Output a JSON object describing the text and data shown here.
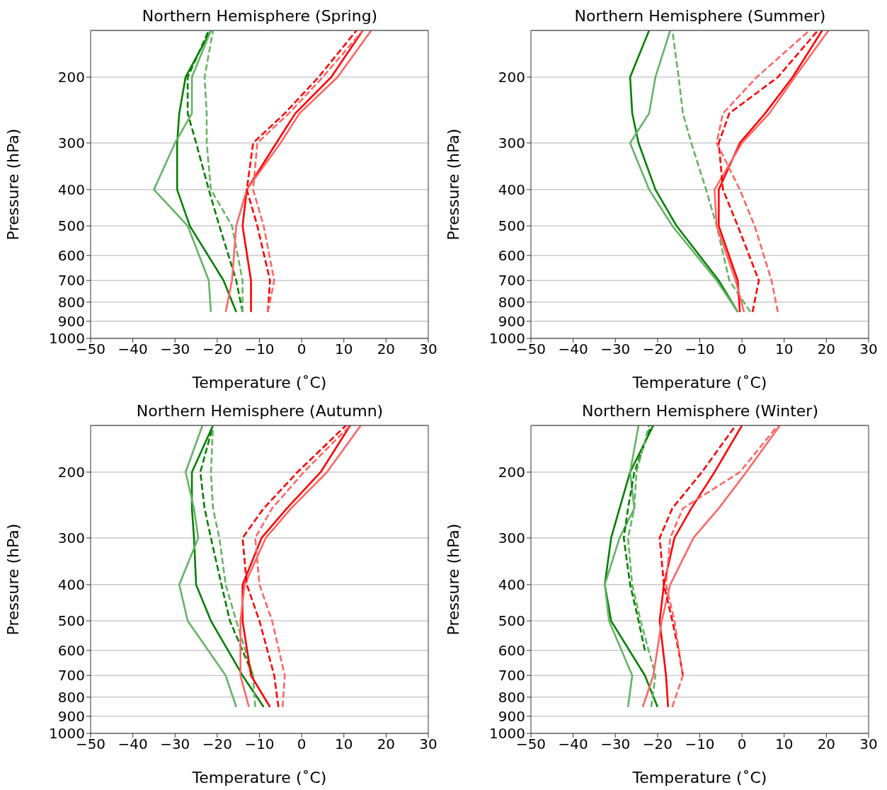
{
  "chart_data": [
    {
      "type": "line",
      "title": "Northern Hemisphere (Spring)",
      "xlabel": "Temperature (˚C)",
      "ylabel": "Pressure (hPa)",
      "xlim": [
        -50,
        30
      ],
      "xticks": [
        -50,
        -40,
        -30,
        -20,
        -10,
        0,
        10,
        20,
        30
      ],
      "ylim": [
        1000,
        150
      ],
      "yticks": [
        200,
        300,
        400,
        500,
        600,
        700,
        800,
        900,
        1000
      ],
      "log": "y",
      "grid": "y",
      "series": [
        {
          "color": "#008000",
          "line_style": "solid",
          "x": [
            -15.5,
            -18.5,
            -26.5,
            -29.5,
            -29.5,
            -29,
            -27.5,
            -21.5
          ],
          "values": [
            850,
            700,
            500,
            400,
            300,
            250,
            200,
            150
          ]
        },
        {
          "color": "#66b366",
          "line_style": "solid",
          "x": [
            -21.5,
            -22,
            -27,
            -35,
            -30,
            -26,
            -26,
            -21.5
          ],
          "values": [
            850,
            700,
            500,
            400,
            300,
            250,
            200,
            150
          ]
        },
        {
          "color": "#008000",
          "line_style": "dashed",
          "x": [
            -14,
            -15.5,
            -19.5,
            -22,
            -25,
            -27,
            -27,
            -22
          ],
          "values": [
            850,
            700,
            500,
            400,
            300,
            250,
            200,
            150
          ]
        },
        {
          "color": "#66b366",
          "line_style": "dashed",
          "x": [
            -14,
            -14,
            -16.5,
            -21.5,
            -22.5,
            -22.5,
            -23,
            -21
          ],
          "values": [
            850,
            700,
            500,
            400,
            300,
            250,
            200,
            150
          ]
        },
        {
          "color": "#ff0000",
          "line_style": "solid",
          "x": [
            -12,
            -12,
            -14,
            -13,
            -6,
            -1.5,
            7,
            14.5
          ],
          "values": [
            850,
            700,
            500,
            400,
            300,
            250,
            200,
            150
          ]
        },
        {
          "color": "#ff6666",
          "line_style": "solid",
          "x": [
            -18,
            -16.5,
            -15.5,
            -13,
            -5,
            -0.5,
            8.5,
            16.5
          ],
          "values": [
            850,
            700,
            500,
            400,
            300,
            250,
            200,
            150
          ]
        },
        {
          "color": "#ff0000",
          "line_style": "dashed",
          "x": [
            -8,
            -7.5,
            -10.5,
            -13,
            -11.5,
            -4,
            4,
            13
          ],
          "values": [
            850,
            700,
            500,
            400,
            300,
            250,
            200,
            150
          ]
        },
        {
          "color": "#ff6666",
          "line_style": "dashed",
          "x": [
            -8,
            -6.5,
            -9,
            -11.5,
            -10.5,
            -3,
            5,
            14.5
          ],
          "values": [
            850,
            700,
            500,
            400,
            300,
            250,
            200,
            150
          ]
        }
      ]
    },
    {
      "type": "line",
      "title": "Northern Hemisphere (Summer)",
      "xlabel": "Temperature (˚C)",
      "ylabel": "Pressure (hPa)",
      "xlim": [
        -50,
        30
      ],
      "xticks": [
        -50,
        -40,
        -30,
        -20,
        -10,
        0,
        10,
        20,
        30
      ],
      "ylim": [
        1000,
        150
      ],
      "yticks": [
        200,
        300,
        400,
        500,
        600,
        700,
        800,
        900,
        1000
      ],
      "log": "y",
      "grid": "y",
      "series": [
        {
          "color": "#008000",
          "line_style": "solid",
          "x": [
            -1,
            -5.5,
            -15.5,
            -20.5,
            -24.5,
            -26,
            -26.5,
            -22
          ],
          "values": [
            850,
            700,
            500,
            400,
            300,
            250,
            200,
            150
          ]
        },
        {
          "color": "#66b366",
          "line_style": "solid",
          "x": [
            -1,
            -6,
            -16.5,
            -22,
            -26.5,
            -22,
            -20.5,
            -17
          ],
          "values": [
            850,
            700,
            500,
            400,
            300,
            250,
            200,
            150
          ]
        },
        {
          "color": "#66b366",
          "line_style": "dashed",
          "x": [
            2,
            -3,
            -6,
            -8.5,
            -12,
            -14,
            -15,
            -16.5
          ],
          "values": [
            850,
            700,
            500,
            400,
            300,
            250,
            200,
            150
          ]
        },
        {
          "color": "#ff0000",
          "line_style": "solid",
          "x": [
            -0.5,
            -1,
            -5.5,
            -5.5,
            -0.5,
            5.5,
            12,
            19
          ],
          "values": [
            850,
            700,
            500,
            400,
            300,
            250,
            200,
            150
          ]
        },
        {
          "color": "#ff6666",
          "line_style": "solid",
          "x": [
            0.5,
            -1.5,
            -6,
            -6.5,
            0,
            6.5,
            12.5,
            20.5
          ],
          "values": [
            850,
            700,
            500,
            400,
            300,
            250,
            200,
            150
          ]
        },
        {
          "color": "#ff0000",
          "line_style": "dashed",
          "x": [
            2.5,
            4,
            -1,
            -4.5,
            -5.5,
            -3,
            8.5,
            18
          ],
          "values": [
            850,
            700,
            500,
            400,
            300,
            250,
            200,
            150
          ]
        },
        {
          "color": "#ff6666",
          "line_style": "dashed",
          "x": [
            8.5,
            7,
            3,
            -0.5,
            -6,
            -4.5,
            3.5,
            16
          ],
          "values": [
            850,
            700,
            500,
            400,
            300,
            250,
            200,
            150
          ]
        }
      ]
    },
    {
      "type": "line",
      "title": "Northern Hemisphere (Autumn)",
      "xlabel": "Temperature (˚C)",
      "ylabel": "Pressure (hPa)",
      "xlim": [
        -50,
        30
      ],
      "xticks": [
        -50,
        -40,
        -30,
        -20,
        -10,
        0,
        10,
        20,
        30
      ],
      "ylim": [
        1000,
        150
      ],
      "yticks": [
        200,
        300,
        400,
        500,
        600,
        700,
        800,
        900,
        1000
      ],
      "log": "y",
      "grid": "y",
      "series": [
        {
          "color": "#008000",
          "line_style": "solid",
          "x": [
            -9,
            -14,
            -21.5,
            -25,
            -25.5,
            -26,
            -26,
            -21
          ],
          "values": [
            850,
            700,
            500,
            400,
            300,
            250,
            200,
            150
          ]
        },
        {
          "color": "#66b366",
          "line_style": "solid",
          "x": [
            -15.5,
            -18,
            -27,
            -29,
            -24.5,
            -25.5,
            -27.5,
            -23.5
          ],
          "values": [
            850,
            700,
            500,
            400,
            300,
            250,
            200,
            150
          ]
        },
        {
          "color": "#008000",
          "line_style": "dashed",
          "x": [
            -11.5,
            -17,
            -19,
            -21.5,
            -23,
            -24,
            -21
          ],
          "values": [
            700,
            500,
            400,
            300,
            250,
            200,
            150
          ]
        },
        {
          "color": "#66b366",
          "line_style": "dashed",
          "x": [
            -11,
            -11.5,
            -15.5,
            -18,
            -19.5,
            -21,
            -21.5,
            -21
          ],
          "values": [
            850,
            700,
            500,
            400,
            300,
            250,
            200,
            150
          ]
        },
        {
          "color": "#ff0000",
          "line_style": "solid",
          "x": [
            -7.5,
            -12,
            -14,
            -14,
            -9.5,
            -3.5,
            4.5,
            11.5
          ],
          "values": [
            850,
            700,
            500,
            400,
            300,
            250,
            200,
            150
          ]
        },
        {
          "color": "#ff6666",
          "line_style": "solid",
          "x": [
            -12.5,
            -14.5,
            -14.5,
            -13.5,
            -8.5,
            -2.5,
            6,
            14
          ],
          "values": [
            850,
            700,
            500,
            400,
            300,
            250,
            200,
            150
          ]
        },
        {
          "color": "#ff0000",
          "line_style": "dashed",
          "x": [
            -5.5,
            -6.5,
            -10,
            -13,
            -14,
            -9,
            -1,
            10.5
          ],
          "values": [
            850,
            700,
            500,
            400,
            300,
            250,
            200,
            150
          ]
        },
        {
          "color": "#ff6666",
          "line_style": "dashed",
          "x": [
            -4.5,
            -4,
            -7,
            -10,
            -11,
            -7,
            0.5,
            11.5
          ],
          "values": [
            850,
            700,
            500,
            400,
            300,
            250,
            200,
            150
          ]
        }
      ]
    },
    {
      "type": "line",
      "title": "Northern Hemisphere (Winter)",
      "xlabel": "Temperature (˚C)",
      "ylabel": "Pressure (hPa)",
      "xlim": [
        -50,
        30
      ],
      "xticks": [
        -50,
        -40,
        -30,
        -20,
        -10,
        0,
        10,
        20,
        30
      ],
      "ylim": [
        1000,
        150
      ],
      "yticks": [
        200,
        300,
        400,
        500,
        600,
        700,
        800,
        900,
        1000
      ],
      "log": "y",
      "grid": "y",
      "series": [
        {
          "color": "#008000",
          "line_style": "solid",
          "x": [
            -20,
            -23,
            -31,
            -32.5,
            -31,
            -29,
            -26.5,
            -21
          ],
          "values": [
            850,
            700,
            500,
            400,
            300,
            250,
            200,
            150
          ]
        },
        {
          "color": "#66b366",
          "line_style": "solid",
          "x": [
            -27,
            -26,
            -31.5,
            -32.5,
            -29,
            -25.5,
            -26.5,
            -24.5
          ],
          "values": [
            850,
            700,
            500,
            400,
            300,
            250,
            200,
            150
          ]
        },
        {
          "color": "#008000",
          "line_style": "dashed",
          "x": [
            -23,
            -24.5,
            -26.5,
            -28,
            -27,
            -25.5,
            -21.5
          ],
          "values": [
            600,
            500,
            400,
            300,
            250,
            200,
            150
          ]
        },
        {
          "color": "#66b366",
          "line_style": "dashed",
          "x": [
            -21.5,
            -20.5,
            -24,
            -26,
            -27,
            -25.5,
            -25,
            -22
          ],
          "values": [
            850,
            700,
            500,
            400,
            300,
            250,
            200,
            150
          ]
        },
        {
          "color": "#ff0000",
          "line_style": "solid",
          "x": [
            -17.5,
            -18,
            -19.5,
            -18.5,
            -16,
            -12,
            -6.5,
            0
          ],
          "values": [
            850,
            700,
            500,
            400,
            300,
            250,
            200,
            150
          ]
        },
        {
          "color": "#ff6666",
          "line_style": "solid",
          "x": [
            -23.5,
            -21,
            -19,
            -17,
            -11.5,
            -5.5,
            1,
            9
          ],
          "values": [
            850,
            700,
            500,
            400,
            300,
            250,
            200,
            150
          ]
        },
        {
          "color": "#ff0000",
          "line_style": "dashed",
          "x": [
            -14,
            -15,
            -16.5,
            -18.5,
            -19.5,
            -16.5,
            -9.5,
            -1.5
          ],
          "values": [
            700,
            600,
            500,
            400,
            300,
            250,
            200,
            150
          ]
        },
        {
          "color": "#ff6666",
          "line_style": "dashed",
          "x": [
            -16.5,
            -14,
            -16,
            -18,
            -17,
            -14,
            -0.5,
            8.5
          ],
          "values": [
            850,
            700,
            500,
            400,
            300,
            250,
            200,
            150
          ]
        }
      ]
    }
  ]
}
